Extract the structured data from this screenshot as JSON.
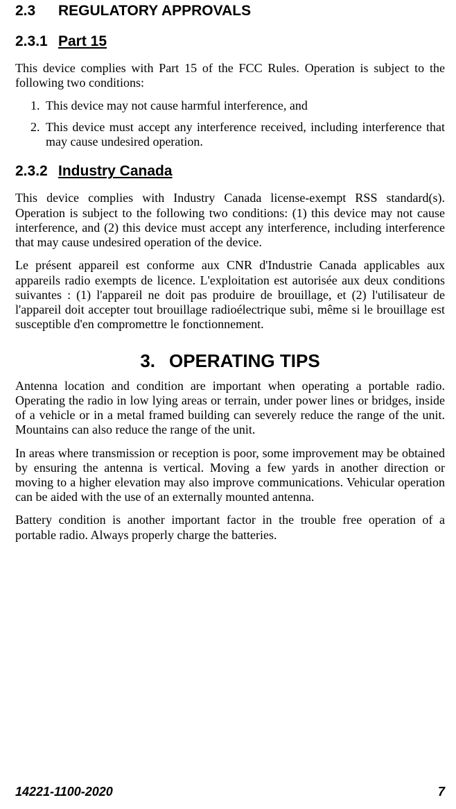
{
  "sec23": {
    "num": "2.3",
    "title": "REGULATORY APPROVALS"
  },
  "sec231": {
    "num": "2.3.1",
    "title": "Part 15",
    "intro": "This device complies with Part 15 of the FCC Rules. Operation is subject to the following two conditions:",
    "items": [
      "This device may not cause harmful interference, and",
      "This device must accept any interference received, including interference that may cause undesired operation."
    ]
  },
  "sec232": {
    "num": "2.3.2",
    "title": "Industry Canada",
    "p_en": "This device complies with Industry Canada license-exempt RSS standard(s). Operation is subject to the following two conditions: (1) this device may not cause interference, and (2) this device must accept any interference, including interference that may cause undesired operation of the device.",
    "p_fr": "Le présent appareil est conforme aux CNR d'Industrie Canada applicables aux appareils radio exempts de licence. L'exploitation est autorisée aux deux conditions suivantes : (1) l'appareil ne doit pas produire de brouillage, et (2) l'utilisateur de l'appareil doit accepter tout brouillage radioélectrique subi, même si le brouillage est susceptible d'en compromettre le fonctionnement."
  },
  "sec3": {
    "num": "3.",
    "title": "OPERATING TIPS",
    "p1": "Antenna location and condition are important when operating a portable radio. Operating the radio in low lying areas or terrain, under power lines or bridges, inside of a vehicle or in a metal framed building can severely reduce the range of the unit. Mountains can also reduce the range of the unit.",
    "p2": "In areas where transmission or reception is poor, some improvement may be obtained by ensuring the antenna is vertical. Moving a few yards in another direction or moving to a higher elevation may also improve communications. Vehicular operation can be aided with the use of an externally mounted antenna.",
    "p3": "Battery condition is another important factor in the trouble free operation of a portable radio. Always properly charge the batteries."
  },
  "footer": {
    "doc": "14221-1100-2020",
    "page": "7"
  }
}
